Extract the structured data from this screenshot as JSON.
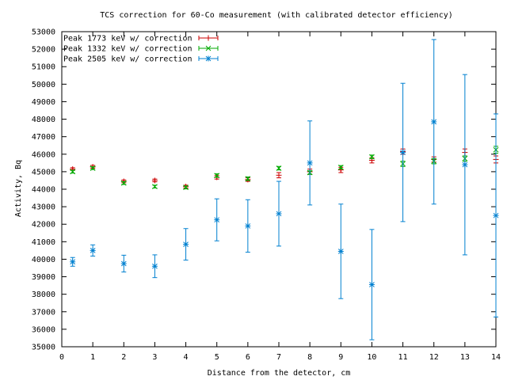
{
  "chart_data": {
    "type": "scatter",
    "title": "TCS correction for 60-Co measurement (with calibrated detector efficiency)",
    "xlabel": "Distance from the detector, cm",
    "ylabel": "Activity, Bq",
    "xlim": [
      0,
      14
    ],
    "ylim": [
      35000,
      53000
    ],
    "xticks": [
      0,
      1,
      2,
      3,
      4,
      5,
      6,
      7,
      8,
      9,
      10,
      11,
      12,
      13,
      14
    ],
    "yticks": [
      35000,
      36000,
      37000,
      38000,
      39000,
      40000,
      41000,
      42000,
      43000,
      44000,
      45000,
      46000,
      47000,
      48000,
      49000,
      50000,
      51000,
      52000,
      53000
    ],
    "grid": false,
    "legend_position": "top-left",
    "series": [
      {
        "name": "Peak 1773 keV w/ correction",
        "color": "#cc0000",
        "marker": "plus",
        "points": [
          {
            "x": 0.35,
            "y": 45150,
            "err": 80
          },
          {
            "x": 1,
            "y": 45280,
            "err": 80
          },
          {
            "x": 2,
            "y": 44450,
            "err": 80
          },
          {
            "x": 3,
            "y": 44500,
            "err": 80
          },
          {
            "x": 4,
            "y": 44150,
            "err": 80
          },
          {
            "x": 5,
            "y": 44680,
            "err": 100
          },
          {
            "x": 6,
            "y": 44550,
            "err": 100
          },
          {
            "x": 7,
            "y": 44800,
            "err": 150
          },
          {
            "x": 8,
            "y": 45000,
            "err": 150
          },
          {
            "x": 9,
            "y": 45100,
            "err": 150
          },
          {
            "x": 10,
            "y": 45650,
            "err": 150
          },
          {
            "x": 11,
            "y": 46150,
            "err": 150
          },
          {
            "x": 12,
            "y": 45700,
            "err": 150
          },
          {
            "x": 13,
            "y": 46100,
            "err": 200
          },
          {
            "x": 14,
            "y": 45700,
            "err": 200
          }
        ]
      },
      {
        "name": "Peak 1332 keV w/ correction",
        "color": "#00aa00",
        "marker": "cross",
        "points": [
          {
            "x": 0.35,
            "y": 45000,
            "err": 80
          },
          {
            "x": 1,
            "y": 45200,
            "err": 80
          },
          {
            "x": 2,
            "y": 44350,
            "err": 80
          },
          {
            "x": 3,
            "y": 44150,
            "err": 80
          },
          {
            "x": 4,
            "y": 44100,
            "err": 80
          },
          {
            "x": 5,
            "y": 44780,
            "err": 100
          },
          {
            "x": 6,
            "y": 44600,
            "err": 100
          },
          {
            "x": 7,
            "y": 45200,
            "err": 100
          },
          {
            "x": 8,
            "y": 44950,
            "err": 100
          },
          {
            "x": 9,
            "y": 45250,
            "err": 100
          },
          {
            "x": 10,
            "y": 45850,
            "err": 100
          },
          {
            "x": 11,
            "y": 45450,
            "err": 150
          },
          {
            "x": 12,
            "y": 45600,
            "err": 150
          },
          {
            "x": 13,
            "y": 45750,
            "err": 150
          },
          {
            "x": 14,
            "y": 46250,
            "err": 200
          }
        ]
      },
      {
        "name": "Peak 2505 keV w/ correction",
        "color": "#0080d0",
        "marker": "star",
        "points": [
          {
            "x": 0.35,
            "y": 39850,
            "err": 250
          },
          {
            "x": 1,
            "y": 40500,
            "err": 320
          },
          {
            "x": 2,
            "y": 39750,
            "err": 480
          },
          {
            "x": 3,
            "y": 39600,
            "err": 650
          },
          {
            "x": 4,
            "y": 40850,
            "err": 900
          },
          {
            "x": 5,
            "y": 42250,
            "err": 1200
          },
          {
            "x": 6,
            "y": 41900,
            "err": 1500
          },
          {
            "x": 7,
            "y": 42600,
            "err": 1850
          },
          {
            "x": 8,
            "y": 45500,
            "err": 2400
          },
          {
            "x": 9,
            "y": 40450,
            "err": 2700
          },
          {
            "x": 10,
            "y": 38550,
            "err": 3150
          },
          {
            "x": 11,
            "y": 46100,
            "err": 3950
          },
          {
            "x": 12,
            "y": 47850,
            "err": 4700
          },
          {
            "x": 13,
            "y": 45400,
            "err": 5150
          },
          {
            "x": 14,
            "y": 42500,
            "err": 5800
          }
        ]
      }
    ]
  }
}
